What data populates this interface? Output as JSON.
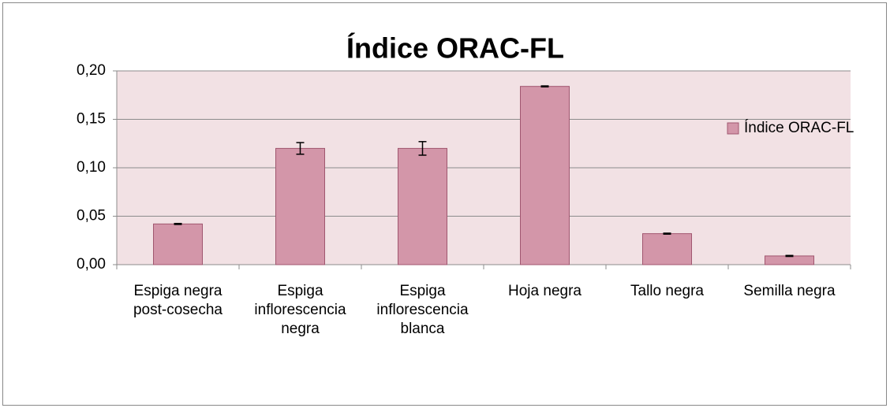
{
  "chart_data": {
    "type": "bar",
    "title": "Índice ORAC-FL",
    "categories": [
      "Espiga negra post-cosecha",
      "Espiga inflorescencia negra",
      "Espiga inflorescencia blanca",
      "Hoja negra",
      "Tallo negra",
      "Semilla negra"
    ],
    "series": [
      {
        "name": "Índice ORAC-FL",
        "color": "#d396a9",
        "values": [
          0.042,
          0.12,
          0.12,
          0.184,
          0.032,
          0.009
        ],
        "errors": [
          0.0005,
          0.006,
          0.007,
          0.0005,
          0.0005,
          0.0005
        ]
      }
    ],
    "ylim": [
      0,
      0.2
    ],
    "yticks": [
      {
        "value": 0,
        "label": "0,00"
      },
      {
        "value": 0.05,
        "label": "0,05"
      },
      {
        "value": 0.1,
        "label": "0,10"
      },
      {
        "value": 0.15,
        "label": "0,15"
      },
      {
        "value": 0.2,
        "label": "0,20"
      }
    ],
    "grid": true,
    "legend": "right"
  }
}
